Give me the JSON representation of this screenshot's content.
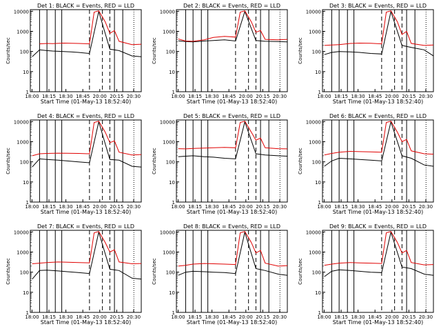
{
  "colors": {
    "events": "#000000",
    "lld": "#e00000",
    "background": "#ffffff",
    "axes": "#000000"
  },
  "chart_data": [
    {
      "type": "line",
      "title": "Det 1: BLACK = Events, RED = LLD",
      "xlabel": "Start Time (01-May-13 18:52:40)",
      "ylabel": "Counts/sec",
      "x_ticks": [
        "18:00",
        "18:15",
        "18:30",
        "18:45",
        "20:00",
        "20:15",
        "20:30"
      ],
      "y_ticks": [
        "1",
        "10",
        "100",
        "1000",
        "10000"
      ],
      "y_scale": "log",
      "ylim": [
        1,
        12000
      ],
      "series": [
        {
          "name": "BLACK = Events",
          "color": "#000000",
          "x": [
            0.1,
            0.5,
            0.9,
            1.2,
            1.8,
            2.2,
            2.6,
            3.2,
            3.7,
            4.3,
            4.8,
            5.5,
            6.0
          ],
          "y": [
            55,
            120,
            110,
            105,
            100,
            95,
            90,
            80,
            9800,
            130,
            110,
            60,
            55
          ]
        },
        {
          "name": "RED = LLD",
          "color": "#e00000",
          "x": [
            0.5,
            0.9,
            1.2,
            1.8,
            2.2,
            2.6,
            3.2,
            3.45,
            3.7,
            4.05,
            4.3,
            4.55,
            4.8,
            5.5,
            6.0
          ],
          "y": [
            240,
            250,
            245,
            260,
            255,
            250,
            240,
            9000,
            10500,
            3000,
            800,
            1100,
            320,
            220,
            230
          ]
        }
      ]
    },
    {
      "type": "line",
      "title": "Det 2: BLACK = Events, RED = LLD",
      "xlabel": "Start Time (01-May-13 18:52:40)",
      "ylabel": "Counts/sec",
      "x_ticks": [
        "18:00",
        "18:15",
        "18:30",
        "18:45",
        "20:00",
        "20:15",
        "20:30"
      ],
      "y_ticks": [
        "1",
        "10",
        "100",
        "1000",
        "10000"
      ],
      "y_scale": "log",
      "ylim": [
        1,
        12000
      ],
      "series": [
        {
          "name": "BLACK = Events",
          "color": "#000000",
          "x": [
            0.1,
            0.5,
            0.9,
            1.5,
            2.0,
            2.6,
            3.2,
            3.7,
            4.3,
            4.8,
            5.5,
            6.0
          ],
          "y": [
            340,
            310,
            300,
            330,
            350,
            380,
            330,
            9800,
            350,
            320,
            310,
            300
          ]
        },
        {
          "name": "RED = LLD",
          "color": "#e00000",
          "x": [
            0.1,
            0.5,
            0.9,
            1.5,
            2.0,
            2.6,
            3.2,
            3.45,
            3.7,
            4.05,
            4.3,
            4.55,
            4.8,
            5.5,
            6.0
          ],
          "y": [
            420,
            330,
            320,
            380,
            500,
            560,
            520,
            9000,
            10500,
            3000,
            900,
            1100,
            400,
            380,
            400
          ]
        }
      ]
    },
    {
      "type": "line",
      "title": "Det 3: BLACK = Events, RED = LLD",
      "xlabel": "Start Time (01-May-13 18:52:40)",
      "ylabel": "Counts/sec",
      "x_ticks": [
        "18:00",
        "18:15",
        "18:30",
        "18:45",
        "20:00",
        "20:15",
        "20:30"
      ],
      "y_ticks": [
        "1",
        "10",
        "100",
        "1000",
        "10000"
      ],
      "y_scale": "log",
      "ylim": [
        1,
        12000
      ],
      "series": [
        {
          "name": "BLACK = Events",
          "color": "#000000",
          "x": [
            0.1,
            0.5,
            0.9,
            1.5,
            2.0,
            2.6,
            3.2,
            3.7,
            4.3,
            4.8,
            5.5,
            6.0
          ],
          "y": [
            70,
            90,
            100,
            95,
            90,
            80,
            75,
            9800,
            200,
            160,
            120,
            60
          ]
        },
        {
          "name": "RED = LLD",
          "color": "#e00000",
          "x": [
            0.1,
            0.5,
            0.9,
            1.5,
            2.0,
            2.6,
            3.2,
            3.45,
            3.7,
            4.05,
            4.3,
            4.55,
            4.8,
            5.5,
            6.0
          ],
          "y": [
            200,
            210,
            220,
            250,
            260,
            255,
            240,
            9000,
            10500,
            3000,
            700,
            1000,
            250,
            200,
            210
          ]
        }
      ]
    },
    {
      "type": "line",
      "title": "Det 4: BLACK = Events, RED = LLD",
      "xlabel": "Start Time (01-May-13 18:52:40)",
      "ylabel": "Counts/sec",
      "x_ticks": [
        "18:00",
        "18:15",
        "18:30",
        "18:45",
        "20:00",
        "20:15",
        "20:30"
      ],
      "y_ticks": [
        "1",
        "10",
        "100",
        "1000",
        "10000"
      ],
      "y_scale": "log",
      "ylim": [
        1,
        12000
      ],
      "series": [
        {
          "name": "BLACK = Events",
          "color": "#000000",
          "x": [
            0.1,
            0.5,
            0.9,
            1.5,
            2.0,
            2.6,
            3.2,
            3.7,
            4.3,
            4.8,
            5.5,
            6.0
          ],
          "y": [
            55,
            140,
            130,
            120,
            110,
            100,
            90,
            9800,
            130,
            120,
            60,
            55
          ]
        },
        {
          "name": "RED = LLD",
          "color": "#e00000",
          "x": [
            0.1,
            0.5,
            0.9,
            1.5,
            2.0,
            2.6,
            3.2,
            3.45,
            3.7,
            4.05,
            4.3,
            4.55,
            4.8,
            5.5,
            6.0
          ],
          "y": [
            200,
            250,
            260,
            270,
            265,
            260,
            250,
            9000,
            10500,
            3000,
            900,
            1100,
            300,
            220,
            230
          ]
        }
      ]
    },
    {
      "type": "line",
      "title": "Det 5: BLACK = Events, RED = LLD",
      "xlabel": "Start Time (01-May-13 18:52:40)",
      "ylabel": "Counts/sec",
      "x_ticks": [
        "18:00",
        "18:15",
        "18:30",
        "18:45",
        "20:00",
        "20:15",
        "20:30"
      ],
      "y_ticks": [
        "1",
        "10",
        "100",
        "1000",
        "10000"
      ],
      "y_scale": "log",
      "ylim": [
        1,
        12000
      ],
      "series": [
        {
          "name": "BLACK = Events",
          "color": "#000000",
          "x": [
            0.1,
            0.5,
            0.9,
            1.5,
            2.0,
            2.6,
            3.2,
            3.7,
            4.3,
            4.8,
            5.5,
            6.0
          ],
          "y": [
            180,
            190,
            200,
            180,
            170,
            150,
            140,
            9800,
            250,
            220,
            200,
            190
          ]
        },
        {
          "name": "RED = LLD",
          "color": "#e00000",
          "x": [
            0.1,
            0.5,
            0.9,
            1.5,
            2.0,
            2.6,
            3.2,
            3.45,
            3.7,
            4.05,
            4.3,
            4.55,
            4.8,
            5.5,
            6.0
          ],
          "y": [
            450,
            440,
            460,
            480,
            500,
            520,
            500,
            9000,
            10500,
            3000,
            1200,
            1500,
            500,
            450,
            440
          ]
        }
      ]
    },
    {
      "type": "line",
      "title": "Det 6: BLACK = Events, RED = LLD",
      "xlabel": "Start Time (01-May-13 18:52:40)",
      "ylabel": "Counts/sec",
      "x_ticks": [
        "18:00",
        "18:15",
        "18:30",
        "18:45",
        "20:00",
        "20:15",
        "20:30"
      ],
      "y_ticks": [
        "1",
        "10",
        "100",
        "1000",
        "10000"
      ],
      "y_scale": "log",
      "ylim": [
        1,
        12000
      ],
      "series": [
        {
          "name": "BLACK = Events",
          "color": "#000000",
          "x": [
            0.1,
            0.5,
            0.9,
            1.5,
            2.0,
            2.6,
            3.2,
            3.7,
            4.3,
            4.8,
            5.5,
            6.0
          ],
          "y": [
            60,
            110,
            150,
            140,
            130,
            120,
            110,
            9800,
            200,
            150,
            70,
            60
          ]
        },
        {
          "name": "RED = LLD",
          "color": "#e00000",
          "x": [
            0.1,
            0.5,
            0.9,
            1.5,
            2.0,
            2.6,
            3.2,
            3.45,
            3.7,
            4.05,
            4.3,
            4.55,
            4.8,
            5.5,
            6.0
          ],
          "y": [
            220,
            260,
            300,
            330,
            320,
            310,
            300,
            9000,
            10500,
            3000,
            1000,
            1300,
            350,
            250,
            240
          ]
        }
      ]
    },
    {
      "type": "line",
      "title": "Det 7: BLACK = Events, RED = LLD",
      "xlabel": "Start Time (01-May-13 18:52:40)",
      "ylabel": "Counts/sec",
      "x_ticks": [
        "18:00",
        "18:15",
        "18:30",
        "18:45",
        "20:00",
        "20:15",
        "20:30"
      ],
      "y_ticks": [
        "1",
        "10",
        "100",
        "1000",
        "10000"
      ],
      "y_scale": "log",
      "ylim": [
        1,
        12000
      ],
      "series": [
        {
          "name": "BLACK = Events",
          "color": "#000000",
          "x": [
            0.1,
            0.5,
            0.9,
            1.5,
            2.0,
            2.6,
            3.2,
            3.7,
            4.3,
            4.8,
            5.5,
            6.0
          ],
          "y": [
            45,
            120,
            125,
            115,
            105,
            95,
            85,
            9800,
            140,
            120,
            50,
            45
          ]
        },
        {
          "name": "RED = LLD",
          "color": "#e00000",
          "x": [
            0.1,
            0.5,
            0.9,
            1.5,
            2.0,
            2.6,
            3.2,
            3.45,
            3.7,
            4.05,
            4.3,
            4.55,
            4.8,
            5.5,
            6.0
          ],
          "y": [
            260,
            280,
            300,
            320,
            310,
            300,
            290,
            9000,
            10500,
            3000,
            1000,
            1300,
            320,
            260,
            270
          ]
        }
      ]
    },
    {
      "type": "line",
      "title": "Det 8: BLACK = Events, RED = LLD",
      "xlabel": "Start Time (01-May-13 18:52:40)",
      "ylabel": "Counts/sec",
      "x_ticks": [
        "18:00",
        "18:15",
        "18:30",
        "18:45",
        "20:00",
        "20:15",
        "20:30"
      ],
      "y_ticks": [
        "1",
        "10",
        "100",
        "1000",
        "10000"
      ],
      "y_scale": "log",
      "ylim": [
        1,
        12000
      ],
      "series": [
        {
          "name": "BLACK = Events",
          "color": "#000000",
          "x": [
            0.1,
            0.5,
            0.9,
            1.5,
            2.0,
            2.6,
            3.2,
            3.7,
            4.3,
            4.8,
            5.5,
            6.0
          ],
          "y": [
            70,
            100,
            110,
            105,
            100,
            95,
            85,
            9800,
            150,
            120,
            80,
            70
          ]
        },
        {
          "name": "RED = LLD",
          "color": "#e00000",
          "x": [
            0.1,
            0.5,
            0.9,
            1.5,
            2.0,
            2.6,
            3.2,
            3.45,
            3.7,
            4.05,
            4.3,
            4.55,
            4.8,
            5.5,
            6.0
          ],
          "y": [
            200,
            220,
            250,
            270,
            260,
            250,
            240,
            9000,
            10500,
            3000,
            900,
            1200,
            280,
            200,
            210
          ]
        }
      ]
    },
    {
      "type": "line",
      "title": "Det 9: BLACK = Events, RED = LLD",
      "xlabel": "Start Time (01-May-13 18:52:40)",
      "ylabel": "Counts/sec",
      "x_ticks": [
        "18:00",
        "18:15",
        "18:30",
        "18:45",
        "20:00",
        "20:15",
        "20:30"
      ],
      "y_ticks": [
        "1",
        "10",
        "100",
        "1000",
        "10000"
      ],
      "y_scale": "log",
      "ylim": [
        1,
        12000
      ],
      "series": [
        {
          "name": "BLACK = Events",
          "color": "#000000",
          "x": [
            0.1,
            0.5,
            0.9,
            1.5,
            2.0,
            2.6,
            3.2,
            3.7,
            4.3,
            4.8,
            5.5,
            6.0
          ],
          "y": [
            60,
            110,
            130,
            120,
            110,
            100,
            95,
            9800,
            180,
            150,
            80,
            70
          ]
        },
        {
          "name": "RED = LLD",
          "color": "#e00000",
          "x": [
            0.1,
            0.5,
            0.9,
            1.5,
            2.0,
            2.6,
            3.2,
            3.45,
            3.7,
            4.05,
            4.3,
            4.55,
            4.8,
            5.5,
            6.0
          ],
          "y": [
            220,
            250,
            280,
            300,
            290,
            280,
            270,
            9000,
            10500,
            3000,
            900,
            1200,
            300,
            230,
            240
          ]
        }
      ]
    }
  ]
}
